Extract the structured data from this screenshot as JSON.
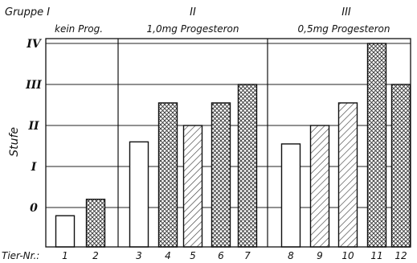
{
  "chart_data": {
    "type": "bar",
    "ylabel": "Stufe",
    "x_axis_prefix": "Tier-Nr.:",
    "y_ticks": [
      {
        "value": 0,
        "label": "0"
      },
      {
        "value": 1,
        "label": "I"
      },
      {
        "value": 2,
        "label": "II"
      },
      {
        "value": 3,
        "label": "III"
      },
      {
        "value": 4,
        "label": "IV"
      }
    ],
    "ylim": [
      -1,
      4
    ],
    "groups": [
      {
        "title": "Gruppe I",
        "subtitle": "kein Prog.",
        "pattern": "hatch",
        "animals": [
          "1",
          "2"
        ]
      },
      {
        "title": "II",
        "subtitle": "1,0mg Progesteron",
        "pattern": "crosshatch",
        "animals": [
          "3",
          "4",
          "5",
          "6",
          "7"
        ]
      },
      {
        "title": "III",
        "subtitle": "0,5mg Progesteron",
        "pattern": "hatch",
        "animals": [
          "8",
          "9",
          "10",
          "11",
          "12"
        ]
      }
    ],
    "categories": [
      "1",
      "2",
      "3",
      "4",
      "5",
      "6",
      "7",
      "8",
      "9",
      "10",
      "11",
      "12"
    ],
    "values": [
      -0.2,
      0.2,
      1.6,
      2.55,
      2.0,
      2.55,
      3.0,
      1.55,
      2.0,
      2.55,
      4.0,
      3.0
    ],
    "fills": [
      "open",
      "crosshatch",
      "open",
      "crosshatch",
      "hatch",
      "crosshatch",
      "crosshatch",
      "open",
      "hatch",
      "hatch",
      "crosshatch",
      "crosshatch"
    ],
    "grid": true
  }
}
